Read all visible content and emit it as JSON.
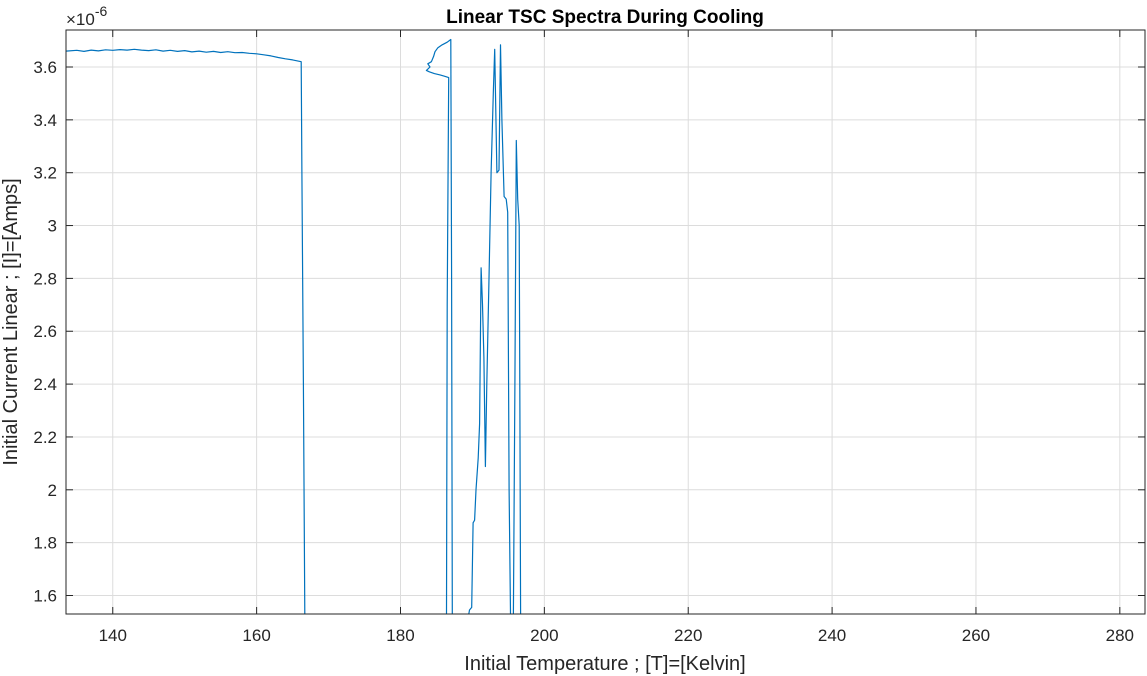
{
  "chart_data": {
    "type": "line",
    "title": "Linear TSC Spectra During Cooling",
    "xlabel": "Initial Temperature ; [T]=[Kelvin]",
    "ylabel": "Initial Current Linear ; [I]=[Amps]",
    "y_exponent_base": "×10",
    "y_exponent_power": "-6",
    "xlim": [
      133.5,
      283.5
    ],
    "ylim": [
      1.53,
      3.74
    ],
    "x_ticks": [
      140,
      160,
      180,
      200,
      220,
      240,
      260,
      280
    ],
    "x_tick_labels": [
      "140",
      "160",
      "180",
      "200",
      "220",
      "240",
      "260",
      "280"
    ],
    "y_ticks": [
      1.6,
      1.8,
      2.0,
      2.2,
      2.4,
      2.6,
      2.8,
      3.0,
      3.2,
      3.4,
      3.6
    ],
    "y_tick_labels": [
      "1.6",
      "1.8",
      "2",
      "2.2",
      "2.4",
      "2.6",
      "2.8",
      "3",
      "3.2",
      "3.4",
      "3.6"
    ],
    "grid": true,
    "line_color": "#0072BD",
    "series": [
      {
        "segments": [
          [
            [
              133.5,
              3.66
            ],
            [
              135,
              3.663
            ],
            [
              136,
              3.659
            ],
            [
              137,
              3.664
            ],
            [
              138,
              3.661
            ],
            [
              139,
              3.665
            ],
            [
              140,
              3.663
            ],
            [
              141,
              3.666
            ],
            [
              142,
              3.664
            ],
            [
              143,
              3.667
            ],
            [
              144,
              3.664
            ],
            [
              145,
              3.662
            ],
            [
              146,
              3.665
            ],
            [
              147,
              3.66
            ],
            [
              148,
              3.663
            ],
            [
              149,
              3.659
            ],
            [
              150,
              3.662
            ],
            [
              151,
              3.657
            ],
            [
              152,
              3.66
            ],
            [
              153,
              3.656
            ],
            [
              154,
              3.659
            ],
            [
              155,
              3.655
            ],
            [
              156,
              3.658
            ],
            [
              157,
              3.654
            ],
            [
              158,
              3.655
            ],
            [
              159,
              3.652
            ],
            [
              160,
              3.65
            ],
            [
              161,
              3.646
            ],
            [
              162,
              3.642
            ],
            [
              163,
              3.636
            ],
            [
              164,
              3.631
            ],
            [
              165,
              3.627
            ],
            [
              166.2,
              3.62
            ],
            [
              166.3,
              3.2
            ],
            [
              166.5,
              2.4
            ],
            [
              166.7,
              1.53
            ]
          ],
          [
            [
              186.4,
              1.53
            ],
            [
              186.5,
              2.7
            ],
            [
              186.7,
              3.56
            ],
            [
              186.1,
              3.565
            ],
            [
              185.5,
              3.57
            ],
            [
              184.7,
              3.575
            ],
            [
              184.0,
              3.582
            ],
            [
              183.6,
              3.587
            ],
            [
              184.1,
              3.6
            ],
            [
              183.8,
              3.612
            ],
            [
              184.3,
              3.62
            ],
            [
              184.6,
              3.64
            ],
            [
              184.8,
              3.658
            ],
            [
              185.2,
              3.673
            ],
            [
              185.8,
              3.684
            ],
            [
              186.5,
              3.694
            ],
            [
              187.0,
              3.704
            ],
            [
              187.1,
              2.8
            ],
            [
              187.2,
              1.53
            ]
          ],
          [
            [
              189.5,
              1.53
            ],
            [
              189.6,
              1.545
            ],
            [
              189.9,
              1.555
            ],
            [
              190.1,
              1.875
            ],
            [
              190.3,
              1.885
            ],
            [
              190.5,
              2.0
            ],
            [
              190.8,
              2.12
            ],
            [
              191.0,
              2.25
            ],
            [
              191.2,
              2.84
            ],
            [
              191.4,
              2.7
            ],
            [
              191.6,
              2.5
            ],
            [
              191.8,
              2.088
            ],
            [
              192.0,
              2.4
            ],
            [
              192.3,
              2.8
            ],
            [
              192.6,
              3.2
            ],
            [
              192.9,
              3.5
            ],
            [
              193.1,
              3.667
            ],
            [
              193.4,
              3.2
            ],
            [
              193.7,
              3.21
            ],
            [
              193.9,
              3.684
            ],
            [
              194.1,
              3.4
            ],
            [
              194.4,
              3.11
            ],
            [
              194.7,
              3.1
            ],
            [
              194.9,
              3.05
            ],
            [
              195.1,
              2.0
            ],
            [
              195.3,
              1.53
            ]
          ],
          [
            [
              195.7,
              1.53
            ],
            [
              195.9,
              2.4
            ],
            [
              196.1,
              3.322
            ],
            [
              196.3,
              3.1
            ],
            [
              196.5,
              3.0
            ],
            [
              196.6,
              2.3
            ],
            [
              196.7,
              1.53
            ]
          ]
        ]
      }
    ]
  }
}
